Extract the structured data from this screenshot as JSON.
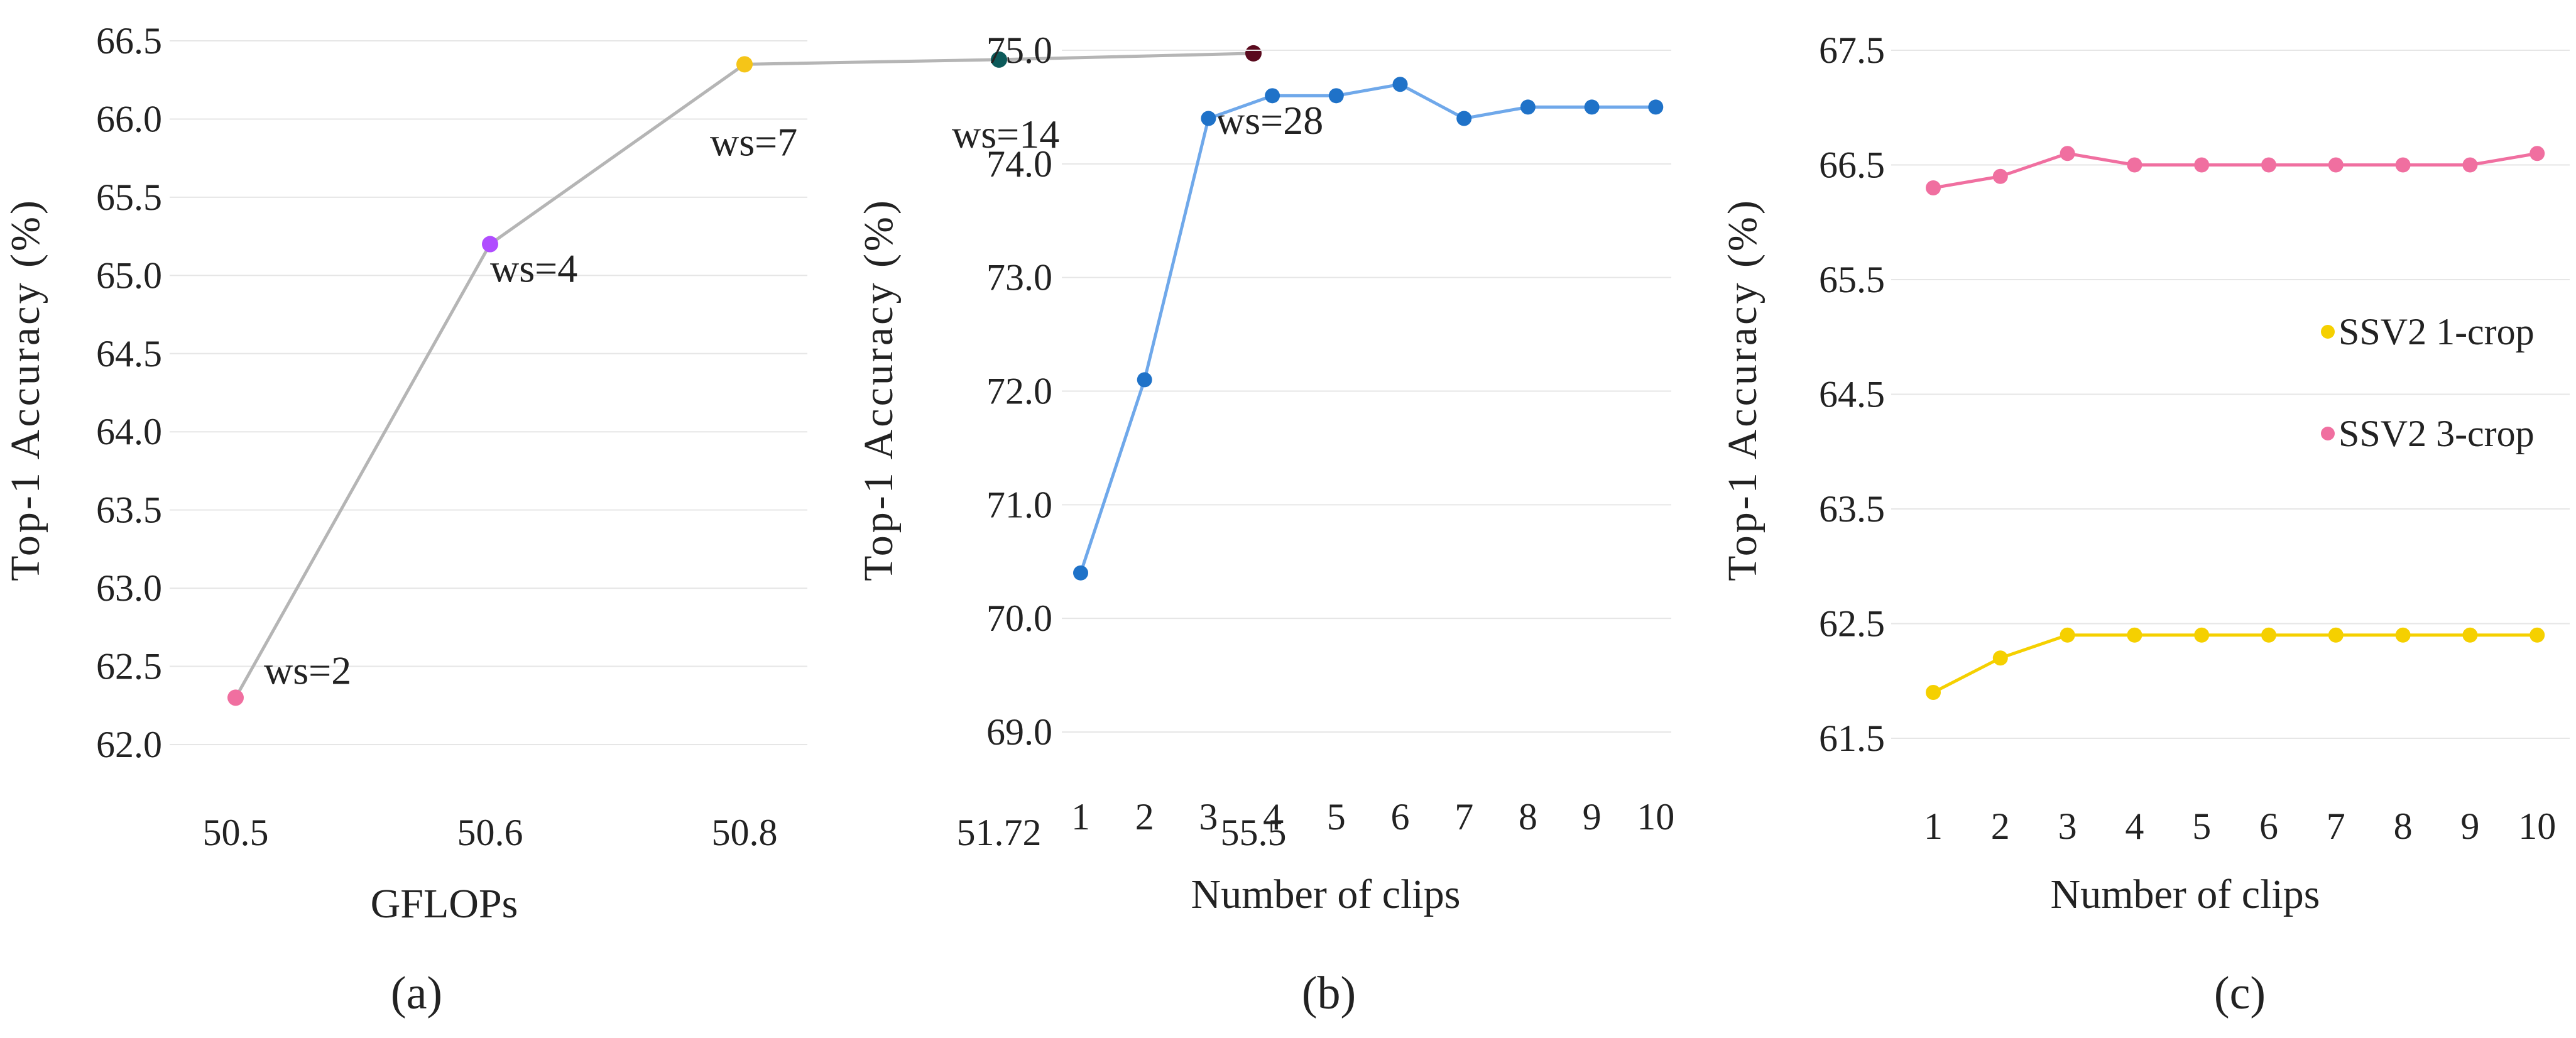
{
  "chart_data": [
    {
      "id": "a",
      "type": "line",
      "categories": [
        "50.5",
        "50.6",
        "50.8",
        "51.72",
        "55.5"
      ],
      "values": [
        62.3,
        65.2,
        66.35,
        66.38,
        66.42
      ],
      "point_labels": [
        "ws=2",
        "ws=4",
        "ws=7",
        "ws=14",
        "ws=28"
      ],
      "point_colors": [
        "#f06fa0",
        "#b04dff",
        "#f5c518",
        "#0c5a5a",
        "#5a0a1e"
      ],
      "line_color": "#b5b5b5",
      "ylim": [
        62.0,
        66.5
      ],
      "yticks": [
        "62.0",
        "62.5",
        "63.0",
        "63.5",
        "64.0",
        "64.5",
        "65.0",
        "65.5",
        "66.0",
        "66.5"
      ],
      "xlabel": "GFLOPs",
      "ylabel": "Top-1 Accuracy (%)",
      "caption": "(a)",
      "grid": true
    },
    {
      "id": "b",
      "type": "line",
      "categories": [
        "1",
        "2",
        "3",
        "4",
        "5",
        "6",
        "7",
        "8",
        "9",
        "10"
      ],
      "series": [
        {
          "name": "",
          "color": "#1f72c8",
          "line_color": "#6fa8ea",
          "values": [
            70.4,
            72.1,
            74.4,
            74.6,
            74.6,
            74.7,
            74.4,
            74.5,
            74.5,
            74.5
          ]
        }
      ],
      "ylim": [
        69.0,
        75.0
      ],
      "yticks": [
        "69.0",
        "70.0",
        "71.0",
        "72.0",
        "73.0",
        "74.0",
        "75.0"
      ],
      "xlabel": "Number of clips",
      "ylabel": "Top-1 Accuracy (%)",
      "caption": "(b)",
      "grid": true
    },
    {
      "id": "c",
      "type": "line",
      "categories": [
        "1",
        "2",
        "3",
        "4",
        "5",
        "6",
        "7",
        "8",
        "9",
        "10"
      ],
      "series": [
        {
          "name": "SSV2 1-crop",
          "color": "#f5d000",
          "line_color": "#f5d000",
          "values": [
            61.9,
            62.2,
            62.4,
            62.4,
            62.4,
            62.4,
            62.4,
            62.4,
            62.4,
            62.4
          ]
        },
        {
          "name": "SSV2 3-crop",
          "color": "#f06fa0",
          "line_color": "#f06fa0",
          "values": [
            66.3,
            66.4,
            66.6,
            66.5,
            66.5,
            66.5,
            66.5,
            66.5,
            66.5,
            66.6
          ]
        }
      ],
      "ylim": [
        61.5,
        67.5
      ],
      "yticks": [
        "61.5",
        "62.5",
        "63.5",
        "64.5",
        "65.5",
        "66.5",
        "67.5"
      ],
      "xlabel": "Number of clips",
      "ylabel": "Top-1 Accuracy (%)",
      "legend_position": "center-right",
      "caption": "(c)",
      "grid": true
    }
  ]
}
